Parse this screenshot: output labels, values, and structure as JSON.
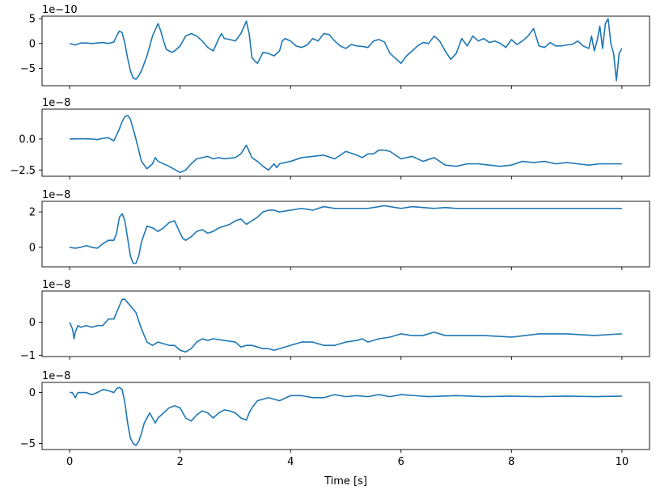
{
  "colors": {
    "line": "#1f77b4",
    "axes": "#000000",
    "background": "#ffffff"
  },
  "chart_data": [
    {
      "type": "line",
      "offset_text": "1e−10",
      "xlim": [
        -0.5,
        10.5
      ],
      "ylim": [
        -8.5,
        5.5
      ],
      "yticks": [
        5,
        0,
        -5
      ],
      "ytick_labels": [
        "5",
        "0",
        "−5"
      ],
      "xticks": [
        0,
        2,
        4,
        6,
        8,
        10
      ],
      "show_xtick_labels": false,
      "grid": false,
      "series": [
        {
          "x": [
            0,
            0.1,
            0.2,
            0.3,
            0.4,
            0.5,
            0.6,
            0.7,
            0.8,
            0.85,
            0.9,
            0.95,
            1.0,
            1.05,
            1.1,
            1.15,
            1.2,
            1.25,
            1.3,
            1.4,
            1.5,
            1.6,
            1.65,
            1.7,
            1.75,
            1.8,
            1.85,
            1.9,
            2.0,
            2.1,
            2.2,
            2.3,
            2.4,
            2.5,
            2.6,
            2.7,
            2.75,
            2.8,
            2.9,
            3.0,
            3.1,
            3.2,
            3.25,
            3.3,
            3.35,
            3.4,
            3.5,
            3.6,
            3.7,
            3.8,
            3.85,
            3.9,
            4.0,
            4.1,
            4.2,
            4.3,
            4.4,
            4.5,
            4.6,
            4.7,
            4.8,
            4.9,
            5.0,
            5.1,
            5.2,
            5.3,
            5.4,
            5.5,
            5.6,
            5.7,
            5.8,
            5.9,
            6.0,
            6.1,
            6.2,
            6.3,
            6.4,
            6.5,
            6.6,
            6.7,
            6.8,
            6.9,
            7.0,
            7.1,
            7.2,
            7.3,
            7.4,
            7.5,
            7.6,
            7.7,
            7.8,
            7.9,
            8.0,
            8.1,
            8.2,
            8.3,
            8.4,
            8.5,
            8.6,
            8.7,
            8.8,
            8.9,
            9.0,
            9.1,
            9.2,
            9.3,
            9.4,
            9.45,
            9.5,
            9.55,
            9.6,
            9.65,
            9.7,
            9.75,
            9.8,
            9.85,
            9.9,
            9.95,
            10.0
          ],
          "y": [
            0,
            -0.3,
            0.1,
            0.1,
            0,
            0.1,
            0.2,
            0,
            0.3,
            1.5,
            2.5,
            2.2,
            0,
            -3,
            -5.5,
            -7.0,
            -7.2,
            -6.5,
            -5.5,
            -2.5,
            1.5,
            4.0,
            2.5,
            0.5,
            -1.2,
            -1.5,
            -1.8,
            -1.5,
            -0.5,
            1.5,
            2.0,
            1.5,
            0.5,
            -0.8,
            -1.5,
            1.0,
            2.0,
            1.0,
            0.8,
            0.5,
            2.0,
            4.5,
            2.0,
            -2.8,
            -3.5,
            -4.0,
            -1.8,
            -2.0,
            -2.5,
            -1.5,
            0.5,
            1.0,
            0.5,
            -0.5,
            -0.8,
            -0.3,
            1.0,
            0.5,
            2.0,
            1.8,
            0.5,
            -0.5,
            -1.0,
            -0.2,
            -0.5,
            -0.6,
            -0.8,
            0.5,
            0.8,
            0.3,
            -2.0,
            -3.0,
            -4.0,
            -2.5,
            -1.5,
            -0.5,
            0.2,
            0,
            1.5,
            0.5,
            -1.5,
            -3.2,
            -2.0,
            1.0,
            -0.5,
            1.5,
            0.5,
            1.0,
            0.2,
            0.5,
            0,
            -0.8,
            0.8,
            -0.2,
            0.5,
            1.5,
            3.0,
            -0.5,
            -0.8,
            0.2,
            -0.5,
            -0.5,
            -0.3,
            -0.2,
            0.5,
            -0.5,
            -1.0,
            1.5,
            -1.5,
            0.5,
            3.5,
            -1.0,
            4.0,
            5.0,
            0,
            -2.0,
            -7.5,
            -2.0,
            -1.0
          ]
        }
      ]
    },
    {
      "type": "line",
      "offset_text": "1e−8",
      "xlim": [
        -0.5,
        10.5
      ],
      "ylim": [
        -3.0,
        2.4
      ],
      "yticks": [
        0,
        -2.5
      ],
      "ytick_labels": [
        "0.0",
        "−2.5"
      ],
      "xticks": [
        0,
        2,
        4,
        6,
        8,
        10
      ],
      "show_xtick_labels": false,
      "grid": false,
      "series": [
        {
          "x": [
            0,
            0.2,
            0.4,
            0.5,
            0.6,
            0.7,
            0.8,
            0.9,
            0.95,
            1.0,
            1.05,
            1.1,
            1.2,
            1.3,
            1.4,
            1.5,
            1.55,
            1.6,
            1.8,
            2.0,
            2.1,
            2.2,
            2.3,
            2.5,
            2.6,
            2.7,
            2.8,
            3.0,
            3.1,
            3.2,
            3.25,
            3.3,
            3.4,
            3.5,
            3.6,
            3.7,
            3.75,
            3.8,
            4.0,
            4.2,
            4.4,
            4.6,
            4.8,
            5.0,
            5.2,
            5.3,
            5.4,
            5.5,
            5.6,
            5.7,
            5.8,
            6.0,
            6.2,
            6.4,
            6.6,
            6.8,
            7.0,
            7.2,
            7.4,
            7.6,
            7.8,
            8.0,
            8.2,
            8.4,
            8.6,
            8.8,
            9.0,
            9.2,
            9.4,
            9.6,
            9.8,
            10.0
          ],
          "y": [
            0,
            0.02,
            0,
            -0.05,
            0.05,
            0.1,
            -0.15,
            0.8,
            1.4,
            1.8,
            1.9,
            1.6,
            0,
            -1.8,
            -2.4,
            -2.0,
            -1.5,
            -1.8,
            -2.2,
            -2.7,
            -2.5,
            -2.0,
            -1.6,
            -1.4,
            -1.6,
            -1.5,
            -1.6,
            -1.5,
            -1.2,
            -0.5,
            -1.0,
            -1.5,
            -1.8,
            -2.2,
            -2.5,
            -2.0,
            -2.3,
            -2.0,
            -1.8,
            -1.5,
            -1.4,
            -1.3,
            -1.6,
            -1.0,
            -1.3,
            -1.5,
            -1.2,
            -1.2,
            -0.9,
            -0.9,
            -1.0,
            -1.6,
            -1.4,
            -1.8,
            -1.5,
            -2.1,
            -2.2,
            -2.0,
            -2.0,
            -2.1,
            -2.2,
            -2.1,
            -1.8,
            -1.9,
            -1.8,
            -2.0,
            -1.9,
            -2.0,
            -2.1,
            -2.0,
            -2.0,
            -2.0
          ]
        }
      ]
    },
    {
      "type": "line",
      "offset_text": "1e−8",
      "xlim": [
        -0.5,
        10.5
      ],
      "ylim": [
        -1.1,
        2.6
      ],
      "yticks": [
        2,
        0
      ],
      "ytick_labels": [
        "2",
        "0"
      ],
      "xticks": [
        0,
        2,
        4,
        6,
        8,
        10
      ],
      "show_xtick_labels": false,
      "grid": false,
      "series": [
        {
          "x": [
            0,
            0.1,
            0.2,
            0.3,
            0.4,
            0.5,
            0.6,
            0.7,
            0.8,
            0.85,
            0.9,
            0.95,
            1.0,
            1.05,
            1.1,
            1.15,
            1.2,
            1.25,
            1.3,
            1.4,
            1.5,
            1.6,
            1.7,
            1.8,
            1.9,
            2.0,
            2.05,
            2.1,
            2.2,
            2.3,
            2.4,
            2.5,
            2.6,
            2.7,
            2.8,
            2.9,
            3.0,
            3.1,
            3.2,
            3.25,
            3.3,
            3.4,
            3.5,
            3.6,
            3.7,
            3.8,
            4.0,
            4.2,
            4.4,
            4.6,
            4.8,
            5.0,
            5.2,
            5.4,
            5.6,
            5.7,
            5.8,
            6.0,
            6.2,
            6.4,
            6.6,
            6.8,
            7.0,
            7.5,
            8.0,
            8.5,
            9.0,
            9.5,
            10.0
          ],
          "y": [
            0,
            -0.05,
            0,
            0.1,
            0,
            -0.05,
            0.2,
            0.4,
            0.4,
            0.8,
            1.7,
            1.9,
            1.5,
            0.5,
            -0.5,
            -0.9,
            -0.9,
            -0.5,
            0.3,
            1.2,
            1.1,
            0.9,
            1.1,
            1.4,
            1.5,
            0.8,
            0.5,
            0.4,
            0.6,
            0.9,
            1.0,
            0.8,
            0.9,
            1.1,
            1.2,
            1.3,
            1.5,
            1.6,
            1.3,
            1.4,
            1.5,
            1.7,
            2.0,
            2.1,
            2.1,
            2.0,
            2.1,
            2.2,
            2.1,
            2.3,
            2.2,
            2.2,
            2.2,
            2.2,
            2.3,
            2.35,
            2.3,
            2.2,
            2.3,
            2.25,
            2.2,
            2.25,
            2.2,
            2.2,
            2.2,
            2.2,
            2.2,
            2.2,
            2.2
          ]
        }
      ]
    },
    {
      "type": "line",
      "offset_text": "1e−8",
      "xlim": [
        -0.5,
        10.5
      ],
      "ylim": [
        -1.04,
        0.95
      ],
      "yticks": [
        0,
        -1
      ],
      "ytick_labels": [
        "0",
        "−1"
      ],
      "xticks": [
        0,
        2,
        4,
        6,
        8,
        10
      ],
      "show_xtick_labels": false,
      "grid": false,
      "series": [
        {
          "x": [
            0,
            0.05,
            0.08,
            0.1,
            0.15,
            0.2,
            0.3,
            0.4,
            0.5,
            0.6,
            0.7,
            0.8,
            0.85,
            0.9,
            0.95,
            1.0,
            1.05,
            1.1,
            1.2,
            1.3,
            1.4,
            1.5,
            1.6,
            1.7,
            1.8,
            1.9,
            2.0,
            2.1,
            2.2,
            2.3,
            2.4,
            2.5,
            2.6,
            2.8,
            3.0,
            3.1,
            3.2,
            3.3,
            3.4,
            3.5,
            3.6,
            3.7,
            3.8,
            4.0,
            4.2,
            4.4,
            4.6,
            4.8,
            5.0,
            5.2,
            5.3,
            5.4,
            5.6,
            5.8,
            6.0,
            6.2,
            6.4,
            6.6,
            6.8,
            7.0,
            7.5,
            8.0,
            8.5,
            9.0,
            9.5,
            10.0
          ],
          "y": [
            0,
            -0.2,
            -0.5,
            -0.3,
            -0.1,
            -0.15,
            -0.1,
            -0.15,
            -0.1,
            -0.1,
            0.1,
            0.1,
            0.3,
            0.5,
            0.7,
            0.7,
            0.6,
            0.5,
            0.3,
            -0.2,
            -0.6,
            -0.7,
            -0.6,
            -0.65,
            -0.7,
            -0.7,
            -0.85,
            -0.9,
            -0.8,
            -0.6,
            -0.5,
            -0.55,
            -0.5,
            -0.55,
            -0.6,
            -0.75,
            -0.7,
            -0.7,
            -0.75,
            -0.8,
            -0.8,
            -0.85,
            -0.8,
            -0.7,
            -0.6,
            -0.6,
            -0.7,
            -0.7,
            -0.6,
            -0.55,
            -0.5,
            -0.6,
            -0.5,
            -0.45,
            -0.35,
            -0.4,
            -0.4,
            -0.3,
            -0.4,
            -0.4,
            -0.4,
            -0.45,
            -0.35,
            -0.35,
            -0.4,
            -0.35
          ]
        }
      ]
    },
    {
      "type": "line",
      "offset_text": "1e−8",
      "xlim": [
        -0.5,
        10.5
      ],
      "ylim": [
        -5.6,
        1.0
      ],
      "yticks": [
        0,
        -5
      ],
      "ytick_labels": [
        "0",
        "−5"
      ],
      "xticks": [
        0,
        2,
        4,
        6,
        8,
        10
      ],
      "xtick_labels": [
        "0",
        "2",
        "4",
        "6",
        "8",
        "10"
      ],
      "show_xtick_labels": true,
      "xlabel": "Time [s]",
      "grid": false,
      "series": [
        {
          "x": [
            0,
            0.05,
            0.1,
            0.15,
            0.2,
            0.3,
            0.4,
            0.5,
            0.6,
            0.7,
            0.8,
            0.85,
            0.9,
            0.95,
            1.0,
            1.05,
            1.1,
            1.15,
            1.2,
            1.25,
            1.3,
            1.35,
            1.4,
            1.45,
            1.5,
            1.55,
            1.6,
            1.7,
            1.8,
            1.9,
            2.0,
            2.1,
            2.2,
            2.3,
            2.4,
            2.5,
            2.6,
            2.7,
            2.8,
            2.9,
            3.0,
            3.1,
            3.2,
            3.25,
            3.3,
            3.4,
            3.6,
            3.8,
            4.0,
            4.2,
            4.4,
            4.6,
            4.8,
            5.0,
            5.2,
            5.4,
            5.6,
            5.8,
            6.0,
            6.5,
            7.0,
            7.5,
            8.0,
            8.5,
            9.0,
            9.5,
            10.0
          ],
          "y": [
            0,
            0,
            -0.5,
            0,
            0,
            0,
            -0.2,
            0,
            0.3,
            0.2,
            0,
            0.4,
            0.5,
            0.3,
            -1.0,
            -3.0,
            -4.5,
            -5.0,
            -5.2,
            -4.8,
            -4.0,
            -3.0,
            -2.5,
            -2.0,
            -2.5,
            -3.0,
            -2.5,
            -2.0,
            -1.5,
            -1.3,
            -1.5,
            -2.5,
            -2.8,
            -2.2,
            -1.8,
            -2.0,
            -2.5,
            -2.0,
            -1.7,
            -1.8,
            -2.0,
            -2.5,
            -2.7,
            -2.0,
            -1.5,
            -0.8,
            -0.5,
            -0.8,
            -0.3,
            -0.3,
            -0.5,
            -0.5,
            -0.2,
            -0.4,
            -0.3,
            -0.4,
            -0.2,
            -0.4,
            -0.2,
            -0.4,
            -0.3,
            -0.4,
            -0.35,
            -0.4,
            -0.35,
            -0.4,
            -0.35
          ]
        }
      ]
    }
  ]
}
